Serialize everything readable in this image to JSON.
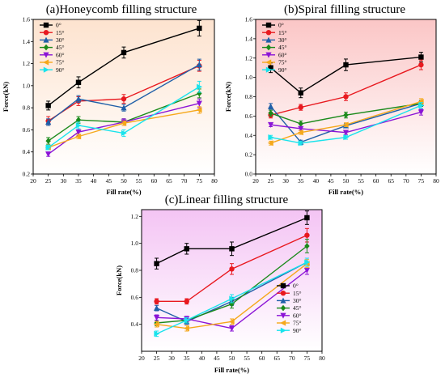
{
  "chart_data": [
    {
      "type": "line",
      "title": "(a)Honeycomb filling structure",
      "xlabel": "Fill rate(%)",
      "ylabel": "Force(kN)",
      "xlim": [
        20,
        80
      ],
      "ylim": [
        0.2,
        1.6
      ],
      "xticks": [
        20,
        25,
        30,
        35,
        40,
        45,
        50,
        55,
        60,
        65,
        70,
        75,
        80
      ],
      "yticks": [
        0.2,
        0.4,
        0.6,
        0.8,
        1.0,
        1.2,
        1.4,
        1.6
      ],
      "ytick_labels": [
        "0.2",
        "0.4",
        "0.6",
        "0.8",
        "1.0",
        "1.2",
        "1.4",
        "1.6"
      ],
      "grid": false,
      "legend": "top-left",
      "background": "#fde3cf",
      "x": [
        25,
        35,
        50,
        75
      ],
      "series": [
        {
          "name": "0°",
          "color": "#000000",
          "marker": "square",
          "values": [
            0.82,
            1.03,
            1.3,
            1.52
          ],
          "err": [
            0.04,
            0.05,
            0.05,
            0.07
          ]
        },
        {
          "name": "15°",
          "color": "#e8191f",
          "marker": "circle",
          "values": [
            0.68,
            0.86,
            0.88,
            1.18
          ],
          "err": [
            0.04,
            0.04,
            0.04,
            0.05
          ]
        },
        {
          "name": "30°",
          "color": "#1f5fa8",
          "marker": "triangle",
          "values": [
            0.67,
            0.88,
            0.8,
            1.19
          ],
          "err": [
            0.03,
            0.03,
            0.03,
            0.05
          ]
        },
        {
          "name": "45°",
          "color": "#1b8a1b",
          "marker": "diamond",
          "values": [
            0.5,
            0.69,
            0.67,
            0.93
          ],
          "err": [
            0.03,
            0.03,
            0.03,
            0.04
          ]
        },
        {
          "name": "60°",
          "color": "#8b14d6",
          "marker": "tri-down",
          "values": [
            0.38,
            0.58,
            0.67,
            0.84
          ],
          "err": [
            0.02,
            0.03,
            0.03,
            0.04
          ]
        },
        {
          "name": "75°",
          "color": "#f5a81b",
          "marker": "tri-left",
          "values": [
            0.44,
            0.54,
            0.66,
            0.78
          ],
          "err": [
            0.02,
            0.02,
            0.02,
            0.03
          ]
        },
        {
          "name": "90°",
          "color": "#19e3ec",
          "marker": "tri-right",
          "values": [
            0.44,
            0.64,
            0.57,
            0.99
          ],
          "err": [
            0.02,
            0.03,
            0.03,
            0.05
          ]
        }
      ]
    },
    {
      "type": "line",
      "title": "(b)Spiral filling structure",
      "xlabel": "Fill rate(%)",
      "ylabel": "Force(kN)",
      "xlim": [
        20,
        80
      ],
      "ylim": [
        0.0,
        1.6
      ],
      "xticks": [
        20,
        25,
        30,
        35,
        40,
        45,
        50,
        55,
        60,
        65,
        70,
        75,
        80
      ],
      "yticks": [
        0.0,
        0.2,
        0.4,
        0.6,
        0.8,
        1.0,
        1.2,
        1.4,
        1.6
      ],
      "ytick_labels": [
        "0.0",
        "0.2",
        "0.4",
        "0.6",
        "0.8",
        "1.0",
        "1.2",
        "1.4",
        "1.6"
      ],
      "grid": false,
      "legend": "top-left",
      "background": "#fbc6c6",
      "x": [
        25,
        35,
        50,
        75
      ],
      "series": [
        {
          "name": "0°",
          "color": "#000000",
          "marker": "square",
          "values": [
            1.1,
            0.84,
            1.13,
            1.21
          ],
          "err": [
            0.05,
            0.05,
            0.06,
            0.05
          ]
        },
        {
          "name": "15°",
          "color": "#e8191f",
          "marker": "circle",
          "values": [
            0.61,
            0.69,
            0.8,
            1.13
          ],
          "err": [
            0.03,
            0.03,
            0.04,
            0.05
          ]
        },
        {
          "name": "30°",
          "color": "#1f5fa8",
          "marker": "triangle",
          "values": [
            0.7,
            0.33,
            0.5,
            0.73
          ],
          "err": [
            0.03,
            0.02,
            0.02,
            0.03
          ]
        },
        {
          "name": "45°",
          "color": "#1b8a1b",
          "marker": "diamond",
          "values": [
            0.63,
            0.52,
            0.61,
            0.73
          ],
          "err": [
            0.03,
            0.03,
            0.03,
            0.03
          ]
        },
        {
          "name": "60°",
          "color": "#8b14d6",
          "marker": "tri-down",
          "values": [
            0.51,
            0.47,
            0.43,
            0.64
          ],
          "err": [
            0.02,
            0.02,
            0.02,
            0.03
          ]
        },
        {
          "name": "75°",
          "color": "#f5a81b",
          "marker": "tri-left",
          "values": [
            0.32,
            0.43,
            0.51,
            0.75
          ],
          "err": [
            0.02,
            0.02,
            0.02,
            0.03
          ]
        },
        {
          "name": "90°",
          "color": "#19e3ec",
          "marker": "tri-right",
          "values": [
            0.38,
            0.32,
            0.38,
            0.71
          ],
          "err": [
            0.02,
            0.02,
            0.02,
            0.03
          ]
        }
      ]
    },
    {
      "type": "line",
      "title": "(c)Linear filling structure",
      "xlabel": "Fill rate(%)",
      "ylabel": "Force(kN)",
      "xlim": [
        20,
        80
      ],
      "ylim": [
        0.2,
        1.25
      ],
      "xticks": [
        20,
        25,
        30,
        35,
        40,
        45,
        50,
        55,
        60,
        65,
        70,
        75,
        80
      ],
      "yticks": [
        0.4,
        0.6,
        0.8,
        1.0,
        1.2
      ],
      "ytick_labels": [
        "0.4",
        "0.6",
        "0.8",
        "1.0",
        "1.2"
      ],
      "grid": false,
      "legend": "bottom-right",
      "background": "#f4c4f4",
      "x": [
        25,
        35,
        50,
        75
      ],
      "series": [
        {
          "name": "0°",
          "color": "#000000",
          "marker": "square",
          "values": [
            0.85,
            0.96,
            0.96,
            1.19
          ],
          "err": [
            0.04,
            0.04,
            0.05,
            0.05
          ]
        },
        {
          "name": "15°",
          "color": "#e8191f",
          "marker": "circle",
          "values": [
            0.57,
            0.57,
            0.81,
            1.06
          ],
          "err": [
            0.02,
            0.02,
            0.04,
            0.05
          ]
        },
        {
          "name": "30°",
          "color": "#1f5fa8",
          "marker": "triangle",
          "values": [
            0.52,
            0.42,
            0.57,
            0.86
          ],
          "err": [
            0.02,
            0.02,
            0.03,
            0.03
          ]
        },
        {
          "name": "45°",
          "color": "#1b8a1b",
          "marker": "diamond",
          "values": [
            0.41,
            0.43,
            0.55,
            0.98
          ],
          "err": [
            0.02,
            0.02,
            0.03,
            0.05
          ]
        },
        {
          "name": "60°",
          "color": "#8b14d6",
          "marker": "tri-down",
          "values": [
            0.45,
            0.44,
            0.37,
            0.8
          ],
          "err": [
            0.02,
            0.02,
            0.02,
            0.03
          ]
        },
        {
          "name": "75°",
          "color": "#f5a81b",
          "marker": "tri-left",
          "values": [
            0.4,
            0.37,
            0.42,
            0.85
          ],
          "err": [
            0.02,
            0.02,
            0.02,
            0.03
          ]
        },
        {
          "name": "90°",
          "color": "#19e3ec",
          "marker": "tri-right",
          "values": [
            0.33,
            0.43,
            0.59,
            0.86
          ],
          "err": [
            0.02,
            0.02,
            0.03,
            0.03
          ]
        }
      ]
    }
  ]
}
